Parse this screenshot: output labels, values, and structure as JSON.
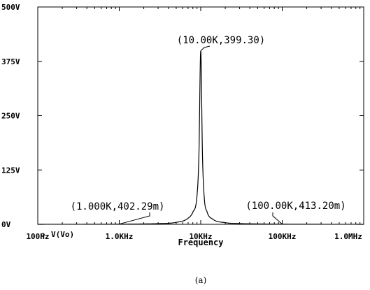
{
  "chart_data": {
    "type": "line",
    "xscale": "log",
    "xlabel": "Frequency",
    "ylabel": "",
    "xlim_hz": [
      100,
      1000000
    ],
    "ylim": [
      0,
      500
    ],
    "x_ticks": [
      {
        "value": 100,
        "label": "100Hz"
      },
      {
        "value": 1000,
        "label": "1.0KHz"
      },
      {
        "value": 10000,
        "label": "10KHz"
      },
      {
        "value": 100000,
        "label": "100KHz"
      },
      {
        "value": 1000000,
        "label": "1.0MHz"
      }
    ],
    "y_ticks": [
      {
        "value": 0,
        "label": "0V"
      },
      {
        "value": 125,
        "label": "125V"
      },
      {
        "value": 250,
        "label": "250V"
      },
      {
        "value": 375,
        "label": "375V"
      },
      {
        "value": 500,
        "label": "500V"
      }
    ],
    "grid": false,
    "legend": {
      "position": "bottom-left",
      "marker": "◇",
      "label": "V(Vo)"
    },
    "series": [
      {
        "name": "V(Vo)",
        "x": [
          100,
          500,
          1000,
          2000,
          3000,
          5000,
          7000,
          8000,
          9000,
          9500,
          10000,
          10500,
          11000,
          12000,
          14000,
          20000,
          30000,
          50000,
          100000,
          200000,
          1000000
        ],
        "y": [
          0.04,
          0.18,
          0.4,
          0.9,
          1.6,
          4.5,
          14,
          28,
          66,
          160,
          399.3,
          160,
          66,
          28,
          12,
          3.8,
          1.7,
          0.9,
          0.41,
          0.2,
          0.04
        ]
      }
    ],
    "annotations": [
      {
        "text": "(10.00K,399.30)",
        "x": 10000,
        "y": 399.3
      },
      {
        "text": "(1.000K,402.29m)",
        "x": 1000,
        "y": 0.40229
      },
      {
        "text": "(100.00K,413.20m)",
        "x": 100000,
        "y": 0.4132
      }
    ]
  },
  "caption": "(a)"
}
